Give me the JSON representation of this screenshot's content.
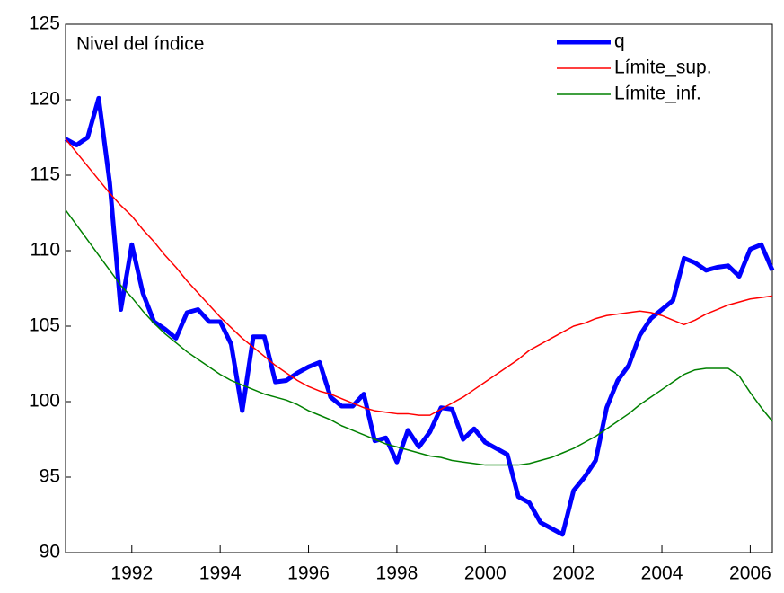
{
  "chart_data": {
    "type": "line",
    "title": "Nivel del índice",
    "x": [
      1990.5,
      1990.75,
      1991,
      1991.25,
      1991.5,
      1991.75,
      1992,
      1992.25,
      1992.5,
      1992.75,
      1993,
      1993.25,
      1993.5,
      1993.75,
      1994,
      1994.25,
      1994.5,
      1994.75,
      1995,
      1995.25,
      1995.5,
      1995.75,
      1996,
      1996.25,
      1996.5,
      1996.75,
      1997,
      1997.25,
      1997.5,
      1997.75,
      1998,
      1998.25,
      1998.5,
      1998.75,
      1999,
      1999.25,
      1999.5,
      1999.75,
      2000,
      2000.25,
      2000.5,
      2000.75,
      2001,
      2001.25,
      2001.5,
      2001.75,
      2002,
      2002.25,
      2002.5,
      2002.75,
      2003,
      2003.25,
      2003.5,
      2003.75,
      2004,
      2004.25,
      2004.5,
      2004.75,
      2005,
      2005.25,
      2005.5,
      2005.75,
      2006,
      2006.25,
      2006.5
    ],
    "series": [
      {
        "name": "q",
        "color": "#0000ff",
        "width": 5,
        "values": [
          117.4,
          117.0,
          117.5,
          120.1,
          114.5,
          106.1,
          110.4,
          107.2,
          105.3,
          104.8,
          104.2,
          105.9,
          106.1,
          105.3,
          105.3,
          103.8,
          99.4,
          104.3,
          104.3,
          101.3,
          101.4,
          101.9,
          102.3,
          102.6,
          100.3,
          99.7,
          99.7,
          100.5,
          97.4,
          97.6,
          96.0,
          98.1,
          97.0,
          98.0,
          99.6,
          99.5,
          97.5,
          98.2,
          97.3,
          96.9,
          96.5,
          93.7,
          93.3,
          92.0,
          91.6,
          91.2,
          94.1,
          95.0,
          96.1,
          99.6,
          101.4,
          102.4,
          104.4,
          105.5,
          106.1,
          106.7,
          109.5,
          109.2,
          108.7,
          108.9,
          109.0,
          108.3,
          110.1,
          110.4,
          108.7
        ]
      },
      {
        "name": "Límite_sup.",
        "color": "#ff0000",
        "width": 1.5,
        "values": [
          117.4,
          116.5,
          115.6,
          114.7,
          113.8,
          113.0,
          112.3,
          111.4,
          110.6,
          109.7,
          108.9,
          108.0,
          107.2,
          106.4,
          105.6,
          104.9,
          104.2,
          103.6,
          103.0,
          102.4,
          101.9,
          101.4,
          101.0,
          100.7,
          100.5,
          100.2,
          99.9,
          99.6,
          99.4,
          99.3,
          99.2,
          99.2,
          99.1,
          99.1,
          99.5,
          99.9,
          100.3,
          100.8,
          101.3,
          101.8,
          102.3,
          102.8,
          103.4,
          103.8,
          104.2,
          104.6,
          105.0,
          105.2,
          105.5,
          105.7,
          105.8,
          105.9,
          106.0,
          105.9,
          105.7,
          105.4,
          105.1,
          105.4,
          105.8,
          106.1,
          106.4,
          106.6,
          106.8,
          106.9,
          107.0
        ]
      },
      {
        "name": "Límite_inf.",
        "color": "#008000",
        "width": 1.5,
        "values": [
          112.7,
          111.7,
          110.7,
          109.7,
          108.7,
          107.7,
          106.9,
          106.0,
          105.2,
          104.5,
          103.9,
          103.3,
          102.8,
          102.3,
          101.8,
          101.4,
          101.1,
          100.8,
          100.5,
          100.3,
          100.1,
          99.8,
          99.4,
          99.1,
          98.8,
          98.4,
          98.1,
          97.8,
          97.5,
          97.2,
          97.0,
          96.8,
          96.6,
          96.4,
          96.3,
          96.1,
          96.0,
          95.9,
          95.8,
          95.8,
          95.8,
          95.8,
          95.9,
          96.1,
          96.3,
          96.6,
          96.9,
          97.3,
          97.7,
          98.2,
          98.7,
          99.2,
          99.8,
          100.3,
          100.8,
          101.3,
          101.8,
          102.1,
          102.2,
          102.2,
          102.2,
          101.7,
          100.6,
          99.6,
          98.7
        ]
      }
    ],
    "xlim": [
      1990.5,
      2006.5
    ],
    "xticks": [
      1992,
      1994,
      1996,
      1998,
      2000,
      2002,
      2004,
      2006
    ],
    "ylim": [
      90,
      125
    ],
    "yticks": [
      90,
      95,
      100,
      105,
      110,
      115,
      120,
      125
    ],
    "grid": false,
    "legend": "upper right"
  }
}
